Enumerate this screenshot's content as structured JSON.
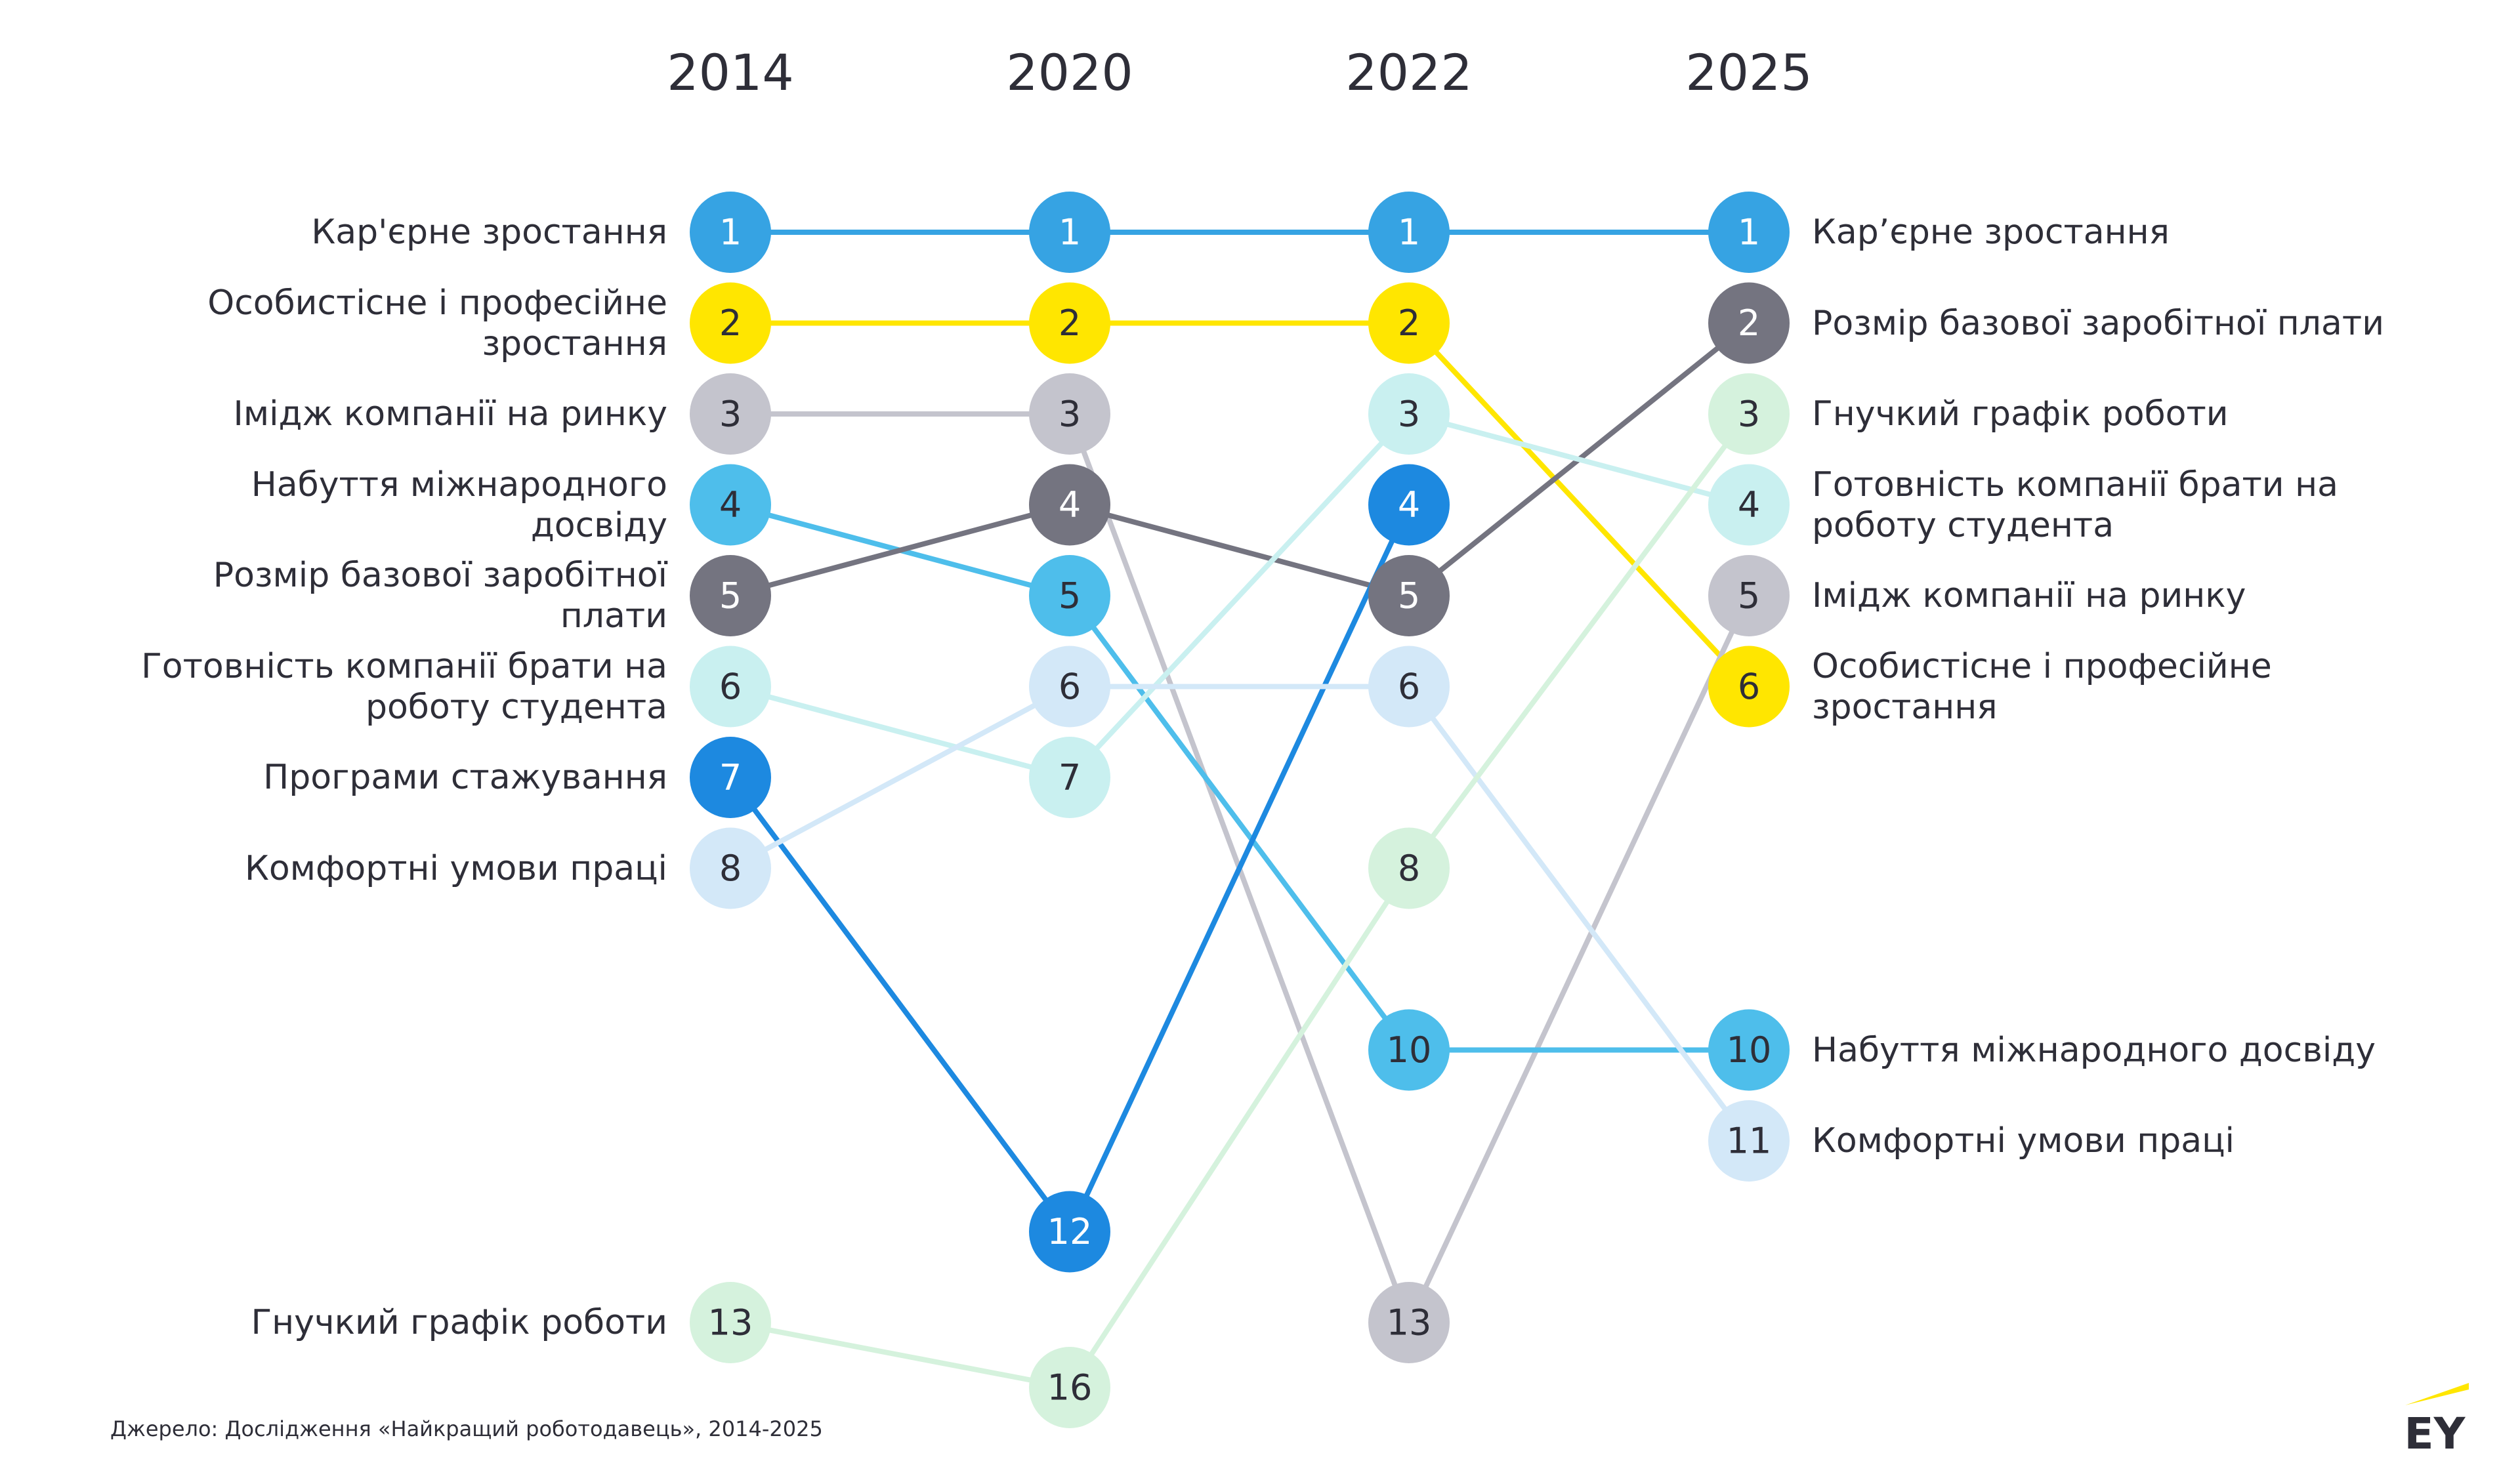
{
  "chart_data": {
    "type": "bump",
    "categories": [
      "2014",
      "2020",
      "2022",
      "2025"
    ],
    "series": [
      {
        "name": "Кар'єрне зростання",
        "end_name": "Кар’єрне зростання",
        "color": "#36a3e3",
        "number_color": "#ffffff",
        "values": [
          1,
          1,
          1,
          1
        ]
      },
      {
        "name": "Особистісне і професійне\nзростання",
        "end_name": "Особистісне і професійне\nзростання",
        "color": "#ffe600",
        "number_color": "#2e2e38",
        "values": [
          2,
          2,
          2,
          6
        ]
      },
      {
        "name": "Імідж компанії на ринку",
        "end_name": "Імідж компанії на ринку",
        "color": "#c4c4cd",
        "number_color": "#2e2e38",
        "values": [
          3,
          3,
          13,
          5
        ]
      },
      {
        "name": "Набуття міжнародного\nдосвіду",
        "end_name": "Набуття міжнародного досвіду",
        "color": "#4ebeeb",
        "number_color": "#2e2e38",
        "values": [
          4,
          5,
          10,
          10
        ]
      },
      {
        "name": "Розмір базової заробітної\nплати",
        "end_name": "Розмір базової заробітної плати",
        "color": "#747480",
        "number_color": "#ffffff",
        "values": [
          5,
          4,
          5,
          2
        ]
      },
      {
        "name": "Готовність компанії брати на\nроботу студента",
        "end_name": "Готовність компанії брати на\nроботу студента",
        "color": "#c9f0f0",
        "number_color": "#2e2e38",
        "values": [
          6,
          7,
          3,
          4
        ]
      },
      {
        "name": "Програми стажування",
        "color": "#1d89e0",
        "number_color": "#ffffff",
        "values": [
          7,
          12,
          4,
          null
        ]
      },
      {
        "name": "Комфортні умови праці",
        "end_name": "Комфортні умови праці",
        "color": "#d3e8f8",
        "number_color": "#2e2e38",
        "values": [
          8,
          6,
          6,
          11
        ]
      },
      {
        "name": "Гнучкий графік роботи",
        "end_name": "Гнучкий графік роботи",
        "color": "#d5f2dd",
        "number_color": "#2e2e38",
        "values": [
          13,
          16,
          8,
          3
        ]
      }
    ],
    "source": "Джерело: Дослідження «Найкращий роботодавець», 2014-2025",
    "logo": "EY"
  }
}
